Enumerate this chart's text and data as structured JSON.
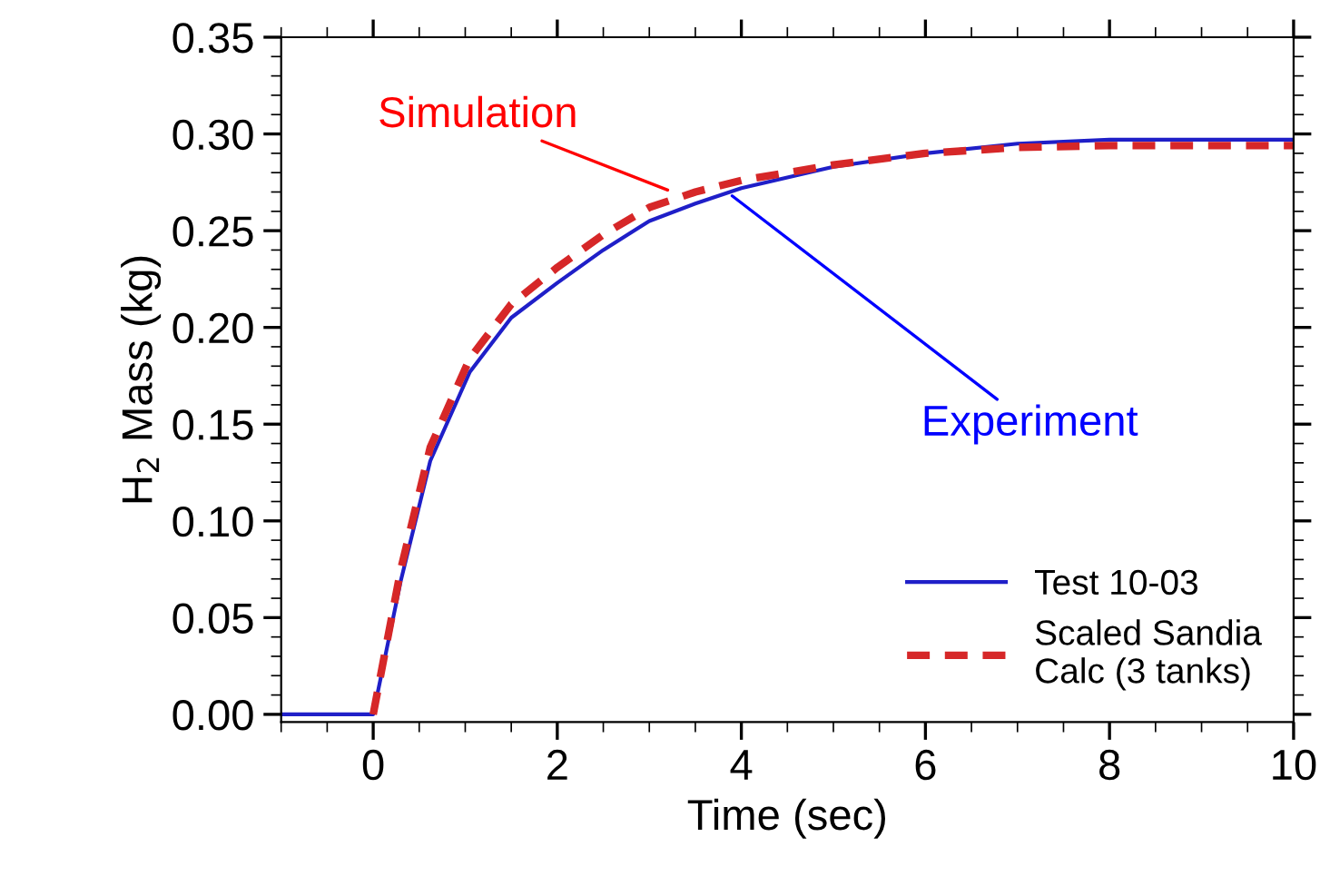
{
  "chart_data": {
    "type": "line",
    "xlabel": "Time (sec)",
    "ylabel": "H$_{2}$ Mass (kg)",
    "xlim": [
      -1,
      10
    ],
    "ylim": [
      -0.004,
      0.35
    ],
    "xticks": [
      0,
      2,
      4,
      6,
      8,
      10
    ],
    "yticks": [
      {
        "value": 0,
        "label": "0.00"
      },
      {
        "value": 0.05,
        "label": "0.05"
      },
      {
        "value": 0.1,
        "label": "0.10"
      },
      {
        "value": 0.15,
        "label": "0.15"
      },
      {
        "value": 0.2,
        "label": "0.20"
      },
      {
        "value": 0.25,
        "label": "0.25"
      },
      {
        "value": 0.3,
        "label": "0.30"
      },
      {
        "value": 0.35,
        "label": "0.35"
      }
    ],
    "grid": false,
    "legend": "bottom right",
    "marker": "none",
    "series": [
      {
        "name": "Test 10-03",
        "color": "#1f1fc8",
        "line_style": "solid",
        "x": [
          -1,
          0,
          0.3,
          0.62,
          1.05,
          1.5,
          2,
          2.5,
          3,
          3.5,
          4,
          5,
          6,
          7,
          8,
          9,
          10
        ],
        "values": [
          0,
          0,
          0.069,
          0.131,
          0.177,
          0.205,
          0.223,
          0.24,
          0.255,
          0.264,
          0.272,
          0.283,
          0.29,
          0.295,
          0.297,
          0.297,
          0.297
        ]
      },
      {
        "name": "Scaled Sandia\nCalc (3 tanks)",
        "color": "#d62728",
        "line_style": "dashed",
        "x": [
          0,
          0.3,
          0.62,
          1.05,
          1.5,
          2,
          2.5,
          3,
          3.5,
          4,
          5,
          6,
          7,
          8,
          9,
          10
        ],
        "values": [
          0,
          0.075,
          0.138,
          0.184,
          0.212,
          0.231,
          0.248,
          0.262,
          0.27,
          0.276,
          0.284,
          0.29,
          0.293,
          0.294,
          0.294,
          0.294
        ]
      }
    ],
    "annotations": [
      {
        "text": "Simulation",
        "x": 3.2,
        "y": 0.271
      },
      {
        "text": "Experiment",
        "x": 3.9,
        "y": 0.268
      }
    ]
  }
}
